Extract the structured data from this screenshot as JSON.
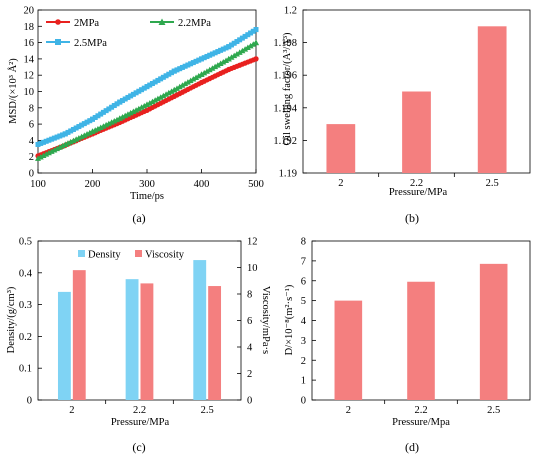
{
  "chart_data": [
    {
      "panel": "(a)",
      "type": "line",
      "xlabel": "Time/ps",
      "ylabel": "MSD/(×10³ Å²)",
      "xlim": [
        100,
        500
      ],
      "ylim": [
        0,
        20
      ],
      "xticks": [
        100,
        200,
        300,
        400,
        500
      ],
      "yticks": [
        0,
        2,
        4,
        6,
        8,
        10,
        12,
        14,
        16,
        18,
        20
      ],
      "grid": false,
      "legend": "top, horizontal",
      "series": [
        {
          "name": "2MPa",
          "color": "#e8211f",
          "marker": "circle",
          "x": [
            100,
            150,
            200,
            250,
            300,
            350,
            400,
            450,
            500
          ],
          "y": [
            2.1,
            3.4,
            4.8,
            6.2,
            7.7,
            9.4,
            11.1,
            12.7,
            14.0
          ]
        },
        {
          "name": "2.2MPa",
          "color": "#2ea84e",
          "marker": "triangle",
          "x": [
            100,
            150,
            200,
            250,
            300,
            350,
            400,
            450,
            500
          ],
          "y": [
            1.8,
            3.5,
            5.1,
            6.7,
            8.4,
            10.2,
            12.1,
            14.0,
            16.0
          ]
        },
        {
          "name": "2.5MPa",
          "color": "#3fb4e6",
          "marker": "square",
          "x": [
            100,
            150,
            200,
            250,
            300,
            350,
            400,
            450,
            500
          ],
          "y": [
            3.5,
            4.8,
            6.6,
            8.7,
            10.6,
            12.5,
            14.0,
            15.5,
            17.6
          ]
        }
      ]
    },
    {
      "panel": "(b)",
      "type": "bar",
      "xlabel": "Pressure/MPa",
      "ylabel": "Oil swelling factor/(A³/A³)",
      "categories": [
        "2",
        "2.2",
        "2.5"
      ],
      "values": [
        1.193,
        1.195,
        1.199
      ],
      "ylim": [
        1.19,
        1.2
      ],
      "yticks": [
        "1.19",
        "1.192",
        "1.194",
        "1.196",
        "1.198",
        "1.2"
      ],
      "color": "#f47f7f",
      "grid": false
    },
    {
      "panel": "(c)",
      "type": "bar",
      "xlabel": "Pressure/MPa",
      "ylabel": "Density/(g/cm³)",
      "ylabel2": "Viscosity/mPa·s",
      "categories": [
        "2",
        "2.2",
        "2.5"
      ],
      "ylim": [
        0,
        0.5
      ],
      "ylim2": [
        0,
        12
      ],
      "yticks": [
        "0",
        "0.1",
        "0.2",
        "0.3",
        "0.4",
        "0.5"
      ],
      "yticks2": [
        "0",
        "2",
        "4",
        "6",
        "8",
        "10",
        "12"
      ],
      "legend": "top-left",
      "series": [
        {
          "name": "Density",
          "axis": "left",
          "color": "#7fd3f4",
          "values": [
            0.34,
            0.38,
            0.44
          ]
        },
        {
          "name": "Viscosity",
          "axis": "right",
          "color": "#f47f7f",
          "values": [
            9.8,
            8.8,
            8.6
          ]
        }
      ],
      "grid": false
    },
    {
      "panel": "(d)",
      "type": "bar",
      "xlabel": "Pressure/Mpa",
      "ylabel": "D/×10⁻⁸(m²·s⁻¹)",
      "categories": [
        "2",
        "2.2",
        "2.5"
      ],
      "values": [
        5.0,
        5.95,
        6.85
      ],
      "ylim": [
        0,
        8
      ],
      "yticks": [
        "0",
        "1",
        "2",
        "3",
        "4",
        "5",
        "6",
        "7",
        "8"
      ],
      "color": "#f47f7f",
      "grid": false
    }
  ]
}
